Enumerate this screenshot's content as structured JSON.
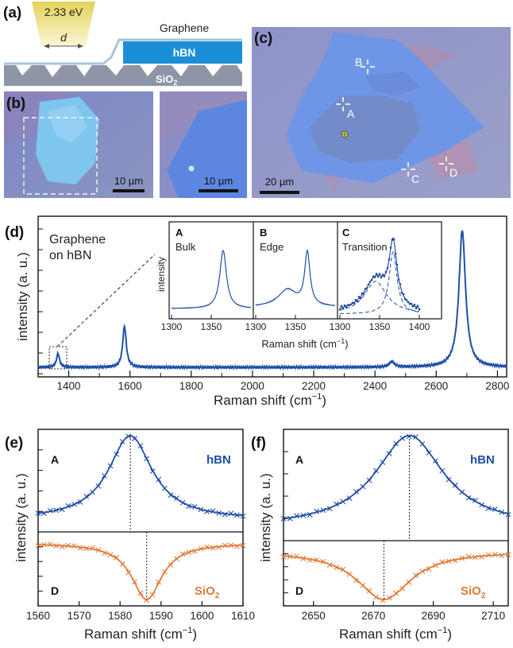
{
  "panel_a": {
    "letter": "(a)",
    "laser": "2.33 eV",
    "distance": "d",
    "graphene": "Graphene",
    "hbn": "hBN",
    "sio2": "SiO",
    "sio2_sub": "2"
  },
  "panel_b": {
    "letter": "(b)",
    "scale_left": "10 µm",
    "scale_right": "10 µm"
  },
  "panel_c": {
    "letter": "(c)",
    "scale": "20 µm",
    "markers": [
      "A",
      "B",
      "C",
      "D"
    ]
  },
  "panel_d": {
    "letter": "(d)",
    "annotation_line1": "Graphene",
    "annotation_line2": "on hBN",
    "xlabel": "Raman shift (cm",
    "xlabel_sup": "−1",
    "xlabel_end": ")",
    "ylabel": "intensity (a. u.)",
    "x_ticks": [
      "1400",
      "1600",
      "1800",
      "2000",
      "2200",
      "2400",
      "2600",
      "2800"
    ],
    "inset": {
      "ylabel": "intensity",
      "xlabel": "Raman shift (cm",
      "xlabel_sup": "−1",
      "xlabel_end": ")",
      "subpanels": [
        {
          "letter": "A",
          "title": "Bulk",
          "ticks": [
            "1300",
            "1350"
          ]
        },
        {
          "letter": "B",
          "title": "Edge",
          "ticks": [
            "1300",
            "1350"
          ]
        },
        {
          "letter": "C",
          "title": "Transition",
          "ticks": [
            "1300",
            "1350",
            "1400"
          ]
        }
      ]
    }
  },
  "panel_e": {
    "letter": "(e)",
    "top_letter": "A",
    "bottom_letter": "D",
    "top_label": "hBN",
    "bottom_label": "SiO",
    "bottom_label_sub": "2",
    "ylabel": "intensity (a. u.)",
    "xlabel": "Raman shift (cm",
    "xlabel_sup": "−1",
    "xlabel_end": ")",
    "x_ticks": [
      "1560",
      "1570",
      "1580",
      "1590",
      "1600",
      "1610"
    ]
  },
  "panel_f": {
    "letter": "(f)",
    "top_letter": "A",
    "bottom_letter": "D",
    "top_label": "hBN",
    "bottom_label": "SiO",
    "bottom_label_sub": "2",
    "ylabel": "intensity (a. u.)",
    "xlabel": "Raman shift (cm",
    "xlabel_sup": "−1",
    "xlabel_end": ")",
    "x_ticks": [
      "2650",
      "2670",
      "2690",
      "2710"
    ]
  },
  "chart_data": [
    {
      "type": "line",
      "panel": "d",
      "xlim": [
        1300,
        2830
      ],
      "peaks": [
        {
          "center": 1365,
          "height": 0.1,
          "width": 6
        },
        {
          "center": 1582,
          "height": 0.3,
          "width": 7
        },
        {
          "center": 2455,
          "height": 0.04,
          "width": 10
        },
        {
          "center": 2685,
          "height": 1.0,
          "width": 13
        }
      ]
    },
    {
      "type": "line",
      "panel": "e",
      "xlim": [
        1560,
        1610
      ],
      "series": [
        {
          "name": "hBN",
          "center": 1582.5,
          "color": "#1f4fa8"
        },
        {
          "name": "SiO2",
          "center": 1586.5,
          "color": "#e07b39"
        }
      ]
    },
    {
      "type": "line",
      "panel": "f",
      "xlim": [
        2640,
        2715
      ],
      "series": [
        {
          "name": "hBN",
          "center": 2682,
          "color": "#1f4fa8"
        },
        {
          "name": "SiO2",
          "center": 2673.5,
          "color": "#e07b39"
        }
      ]
    }
  ],
  "colors": {
    "blue": "#1f4fa8",
    "orange": "#e07b39"
  }
}
